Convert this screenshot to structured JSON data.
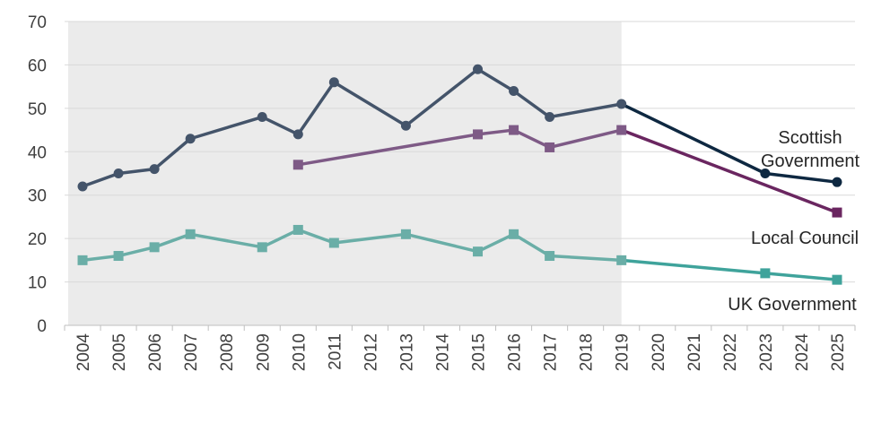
{
  "chart_data": {
    "type": "line",
    "title": "",
    "xlabel": "",
    "ylabel": "",
    "ylim": [
      0,
      70
    ],
    "yticks": [
      0,
      10,
      20,
      30,
      40,
      50,
      60,
      70
    ],
    "grid": true,
    "categories": [
      "2004",
      "2005",
      "2006",
      "2007",
      "2008",
      "2009",
      "2010",
      "2011",
      "2012",
      "2013",
      "2014",
      "2015",
      "2016",
      "2017",
      "2018",
      "2019",
      "2020",
      "2021",
      "2022",
      "2023",
      "2024",
      "2025"
    ],
    "shaded_region": {
      "from": "2004",
      "to": "2019",
      "color": "#ebebeb"
    },
    "series": [
      {
        "name": "Scottish Government",
        "label_lines": [
          "Scottish",
          "Government"
        ],
        "marker": "circle",
        "color": "#44546a",
        "projection_color": "#0e2841",
        "points": [
          {
            "x": "2004",
            "y": 32
          },
          {
            "x": "2005",
            "y": 35
          },
          {
            "x": "2006",
            "y": 36
          },
          {
            "x": "2007",
            "y": 43
          },
          {
            "x": "2009",
            "y": 48
          },
          {
            "x": "2010",
            "y": 44
          },
          {
            "x": "2011",
            "y": 56
          },
          {
            "x": "2013",
            "y": 46
          },
          {
            "x": "2015",
            "y": 59
          },
          {
            "x": "2016",
            "y": 54
          },
          {
            "x": "2017",
            "y": 48
          },
          {
            "x": "2019",
            "y": 51
          },
          {
            "x": "2023",
            "y": 35
          },
          {
            "x": "2025",
            "y": 33
          }
        ]
      },
      {
        "name": "Local Council",
        "label_lines": [
          "Local Council"
        ],
        "marker": "square",
        "color": "#7e5a86",
        "projection_color": "#6a2660",
        "points": [
          {
            "x": "2010",
            "y": 37
          },
          {
            "x": "2015",
            "y": 44
          },
          {
            "x": "2016",
            "y": 45
          },
          {
            "x": "2017",
            "y": 41
          },
          {
            "x": "2019",
            "y": 45
          },
          {
            "x": "2025",
            "y": 26
          }
        ]
      },
      {
        "name": "UK Government",
        "label_lines": [
          "UK Government"
        ],
        "marker": "square",
        "color": "#6aaea7",
        "projection_color": "#3fa39b",
        "points": [
          {
            "x": "2004",
            "y": 15
          },
          {
            "x": "2005",
            "y": 16
          },
          {
            "x": "2006",
            "y": 18
          },
          {
            "x": "2007",
            "y": 21
          },
          {
            "x": "2009",
            "y": 18
          },
          {
            "x": "2010",
            "y": 22
          },
          {
            "x": "2011",
            "y": 19
          },
          {
            "x": "2013",
            "y": 21
          },
          {
            "x": "2015",
            "y": 17
          },
          {
            "x": "2016",
            "y": 21
          },
          {
            "x": "2017",
            "y": 16
          },
          {
            "x": "2019",
            "y": 15
          },
          {
            "x": "2023",
            "y": 12
          },
          {
            "x": "2025",
            "y": 10.5
          }
        ]
      }
    ]
  }
}
